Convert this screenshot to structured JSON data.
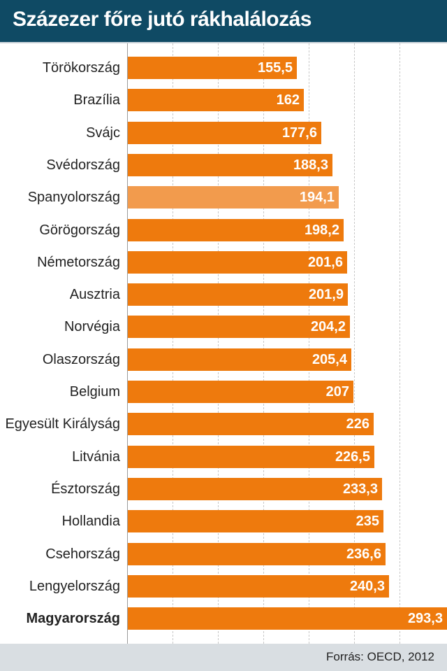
{
  "header": {
    "title": "Százezer főre jutó rákhalálozás"
  },
  "footer": {
    "source": "Forrás: OECD, 2012"
  },
  "colors": {
    "header_bg": "#0f4a64",
    "bar": "#ee7a0d",
    "bar_highlight": "#f29b4d",
    "footer_bg": "#d9dee2"
  },
  "chart_data": {
    "type": "bar",
    "orientation": "horizontal",
    "title": "Százezer főre jutó rákhalálozás",
    "xlabel": "",
    "ylabel": "",
    "grid": true,
    "categories": [
      "Törökország",
      "Brazília",
      "Svájc",
      "Svédország",
      "Spanyolország",
      "Görögország",
      "Németország",
      "Ausztria",
      "Norvégia",
      "Olaszország",
      "Belgium",
      "Egyesült Királyság",
      "Litvánia",
      "Észtország",
      "Hollandia",
      "Csehország",
      "Lengyelország",
      "Magyarország"
    ],
    "values": [
      155.5,
      162,
      177.6,
      188.3,
      194.1,
      198.2,
      201.6,
      201.9,
      204.2,
      205.4,
      207,
      226,
      226.5,
      233.3,
      235,
      236.6,
      240.3,
      293.3
    ],
    "value_labels": [
      "155,5",
      "162",
      "177,6",
      "188,3",
      "194,1",
      "198,2",
      "201,6",
      "201,9",
      "204,2",
      "205,4",
      "207",
      "226",
      "226,5",
      "233,3",
      "235",
      "236,6",
      "240,3",
      "293,3"
    ],
    "highlighted": [
      "Spanyolország"
    ],
    "emphasized": [
      "Magyarország"
    ],
    "xlim": [
      0,
      293.3
    ]
  }
}
